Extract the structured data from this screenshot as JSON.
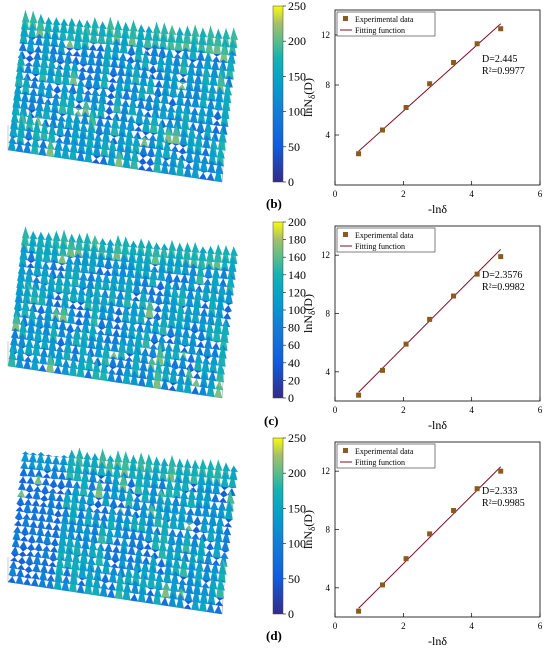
{
  "panels": [
    {
      "label": "(b)",
      "colorbar": {
        "min": 0,
        "max": 250,
        "ticks": [
          0,
          50,
          100,
          150,
          200,
          250
        ]
      },
      "chart_data": {
        "type": "scatter",
        "legend": [
          "Experimental data",
          "Fitting function"
        ],
        "legend_position": "top-left",
        "xlabel": "-lnδ",
        "ylabel": "lnN_δ(D)",
        "xlim": [
          0,
          6
        ],
        "ylim": [
          0,
          14
        ],
        "xticks": [
          0,
          2,
          4,
          6
        ],
        "yticks": [
          4,
          8,
          12
        ],
        "annotation_D": "D=2.445",
        "annotation_R": "R²=0.9977",
        "series": [
          {
            "name": "Experimental data",
            "x": [
              0.69,
              1.39,
              2.08,
              2.77,
              3.47,
              4.16,
              4.85
            ],
            "y": [
              2.5,
              4.4,
              6.2,
              8.1,
              9.8,
              11.3,
              12.5
            ]
          },
          {
            "name": "Fitting function",
            "x": [
              0.69,
              4.85
            ],
            "y": [
              2.7,
              12.9
            ]
          }
        ]
      }
    },
    {
      "label": "(c)",
      "colorbar": {
        "min": 0,
        "max": 200,
        "ticks": [
          0,
          20,
          40,
          60,
          80,
          100,
          120,
          140,
          160,
          180,
          200
        ]
      },
      "chart_data": {
        "type": "scatter",
        "legend": [
          "Experimental data",
          "Fitting function"
        ],
        "legend_position": "top-left",
        "xlabel": "-lnδ",
        "ylabel": "lnN_δ(D)",
        "xlim": [
          0,
          6
        ],
        "ylim": [
          2,
          14
        ],
        "xticks": [
          0,
          2,
          4,
          6
        ],
        "yticks": [
          4,
          8,
          12
        ],
        "annotation_D": "D=2.3576",
        "annotation_R": "R²=0.9982",
        "series": [
          {
            "name": "Experimental data",
            "x": [
              0.69,
              1.39,
              2.08,
              2.77,
              3.47,
              4.16,
              4.85
            ],
            "y": [
              2.4,
              4.1,
              5.9,
              7.6,
              9.2,
              10.7,
              11.9
            ]
          },
          {
            "name": "Fitting function",
            "x": [
              0.69,
              4.85
            ],
            "y": [
              2.6,
              12.4
            ]
          }
        ]
      }
    },
    {
      "label": "(d)",
      "colorbar": {
        "min": 0,
        "max": 250,
        "ticks": [
          0,
          50,
          100,
          150,
          200,
          250
        ]
      },
      "chart_data": {
        "type": "scatter",
        "legend": [
          "Experimental data",
          "Fitting function"
        ],
        "legend_position": "top-left",
        "xlabel": "-lnδ",
        "ylabel": "lnN_δ(D)",
        "xlim": [
          0,
          6
        ],
        "ylim": [
          2,
          14
        ],
        "xticks": [
          0,
          2,
          4,
          6
        ],
        "yticks": [
          4,
          8,
          12
        ],
        "annotation_D": "D=2.333",
        "annotation_R": "R²=0.9985",
        "series": [
          {
            "name": "Experimental data",
            "x": [
              0.69,
              1.39,
              2.08,
              2.77,
              3.47,
              4.16,
              4.85
            ],
            "y": [
              2.4,
              4.2,
              6.0,
              7.7,
              9.3,
              10.8,
              12.0
            ]
          },
          {
            "name": "Fitting function",
            "x": [
              0.69,
              4.85
            ],
            "y": [
              2.6,
              12.3
            ]
          }
        ]
      }
    }
  ],
  "colors": {
    "marker": "#8b5a1e",
    "fit_line": "#7a1020",
    "surface_low": "#3b2fb0",
    "surface_mid": "#1f9fd0",
    "surface_high": "#d9e21a"
  }
}
